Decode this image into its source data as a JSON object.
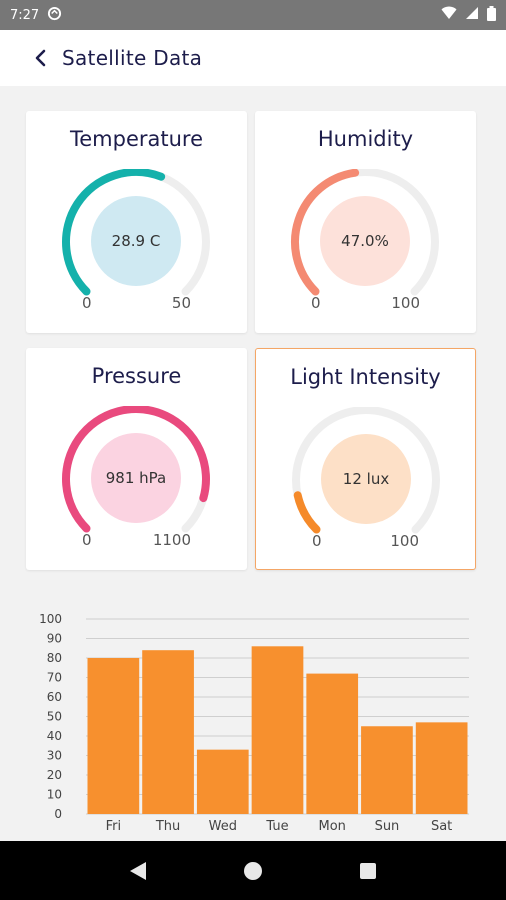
{
  "status": {
    "time": "7:27"
  },
  "header": {
    "title": "Satellite Data"
  },
  "gauges": [
    {
      "title": "Temperature",
      "value_text": "28.9 C",
      "min": "0",
      "max": "50",
      "fraction": 0.578,
      "color": "#14b1ab",
      "bubble": "#cfe9f2",
      "selected": false
    },
    {
      "title": "Humidity",
      "value_text": "47.0%",
      "min": "0",
      "max": "100",
      "fraction": 0.47,
      "color": "#f48a72",
      "bubble": "#fde1da",
      "selected": false
    },
    {
      "title": "Pressure",
      "value_text": "981 hPa",
      "min": "0",
      "max": "1100",
      "fraction": 0.892,
      "color": "#e94a7e",
      "bubble": "#fbd3e1",
      "selected": false
    },
    {
      "title": "Light Intensity",
      "value_text": "12 lux",
      "min": "0",
      "max": "100",
      "fraction": 0.12,
      "color": "#f58a2a",
      "bubble": "#fde0c7",
      "selected": true
    }
  ],
  "chart_data": {
    "type": "bar",
    "categories": [
      "Fri",
      "Thu",
      "Wed",
      "Tue",
      "Mon",
      "Sun",
      "Sat"
    ],
    "values": [
      80,
      84,
      33,
      86,
      72,
      45,
      47
    ],
    "ylim": [
      0,
      100
    ],
    "yticks": [
      "0",
      "10",
      "20",
      "30",
      "40",
      "50",
      "60",
      "70",
      "80",
      "90",
      "100"
    ],
    "grid": true,
    "bar_color": "#f7902e"
  }
}
